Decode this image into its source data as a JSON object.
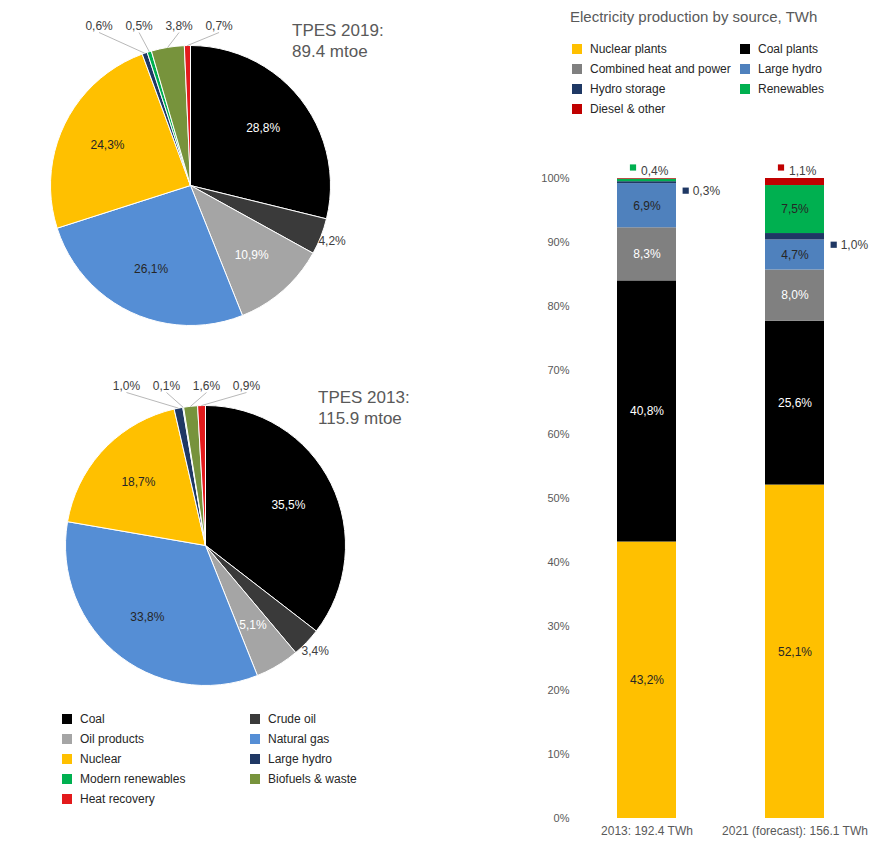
{
  "chart_data": [
    {
      "type": "pie",
      "title": "TPES 2019:",
      "subtitle": "89.4 mtoe",
      "categories": [
        "Coal",
        "Crude oil",
        "Oil products",
        "Natural gas",
        "Nuclear",
        "Large hydro",
        "Modern renewables",
        "Biofuels & waste",
        "Heat recovery"
      ],
      "values": [
        28.8,
        4.2,
        10.9,
        26.1,
        24.3,
        0.6,
        0.5,
        3.8,
        0.7
      ],
      "value_labels": [
        "28,8%",
        "4,2%",
        "10,9%",
        "26,1%",
        "24,3%",
        "0,6%",
        "0,5%",
        "3,8%",
        "0,7%"
      ],
      "colors": [
        "#000000",
        "#3a3a3a",
        "#a5a5a5",
        "#558ed5",
        "#ffc000",
        "#1f3864",
        "#00b050",
        "#77933c",
        "#e31a1c"
      ],
      "data_labels": true
    },
    {
      "type": "pie",
      "title": "TPES 2013:",
      "subtitle": "115.9 mtoe",
      "categories": [
        "Coal",
        "Crude oil",
        "Oil products",
        "Natural gas",
        "Nuclear",
        "Large hydro",
        "Modern renewables",
        "Biofuels & waste",
        "Heat recovery"
      ],
      "values": [
        35.5,
        3.4,
        5.1,
        33.8,
        18.7,
        1.0,
        0.1,
        1.6,
        0.9
      ],
      "value_labels": [
        "35,5%",
        "3,4%",
        "5,1%",
        "33,8%",
        "18,7%",
        "1,0%",
        "0,1%",
        "1,6%",
        "0,9%"
      ],
      "colors": [
        "#000000",
        "#3a3a3a",
        "#a5a5a5",
        "#558ed5",
        "#ffc000",
        "#1f3864",
        "#00b050",
        "#77933c",
        "#e31a1c"
      ],
      "data_labels": true,
      "legend": "bottom"
    },
    {
      "type": "bar",
      "title": "Electricity production by source, TWh",
      "categories": [
        "2013: 192.4 TWh",
        "2021 (forecast): 156.1 TWh"
      ],
      "series": [
        {
          "name": "Nuclear plants",
          "color": "#ffc000",
          "values": [
            43.2,
            52.1
          ],
          "value_labels": [
            "43,2%",
            "52,1%"
          ]
        },
        {
          "name": "Coal plants",
          "color": "#000000",
          "values": [
            40.8,
            25.6
          ],
          "value_labels": [
            "40,8%",
            "25,6%"
          ]
        },
        {
          "name": "Combined heat and power",
          "color": "#808080",
          "values": [
            8.3,
            8.0
          ],
          "value_labels": [
            "8,3%",
            "8,0%"
          ]
        },
        {
          "name": "Large hydro",
          "color": "#4f81bd",
          "values": [
            6.9,
            4.7
          ],
          "value_labels": [
            "6,9%",
            "4,7%"
          ]
        },
        {
          "name": "Hydro storage",
          "color": "#1f3864",
          "values": [
            0.3,
            1.0
          ],
          "value_labels": [
            "0,3%",
            "1,0%"
          ]
        },
        {
          "name": "Renewables",
          "color": "#00b050",
          "values": [
            0.4,
            7.5
          ],
          "value_labels": [
            "0,4%",
            "7,5%"
          ]
        },
        {
          "name": "Diesel & other",
          "color": "#c00000",
          "values": [
            0.1,
            1.1
          ],
          "value_labels": [
            null,
            "1,1%"
          ]
        }
      ],
      "ylim": [
        0,
        100
      ],
      "yticks": [
        {
          "value": 0,
          "label": "0%"
        },
        {
          "value": 10,
          "label": "10%"
        },
        {
          "value": 20,
          "label": "20%"
        },
        {
          "value": 30,
          "label": "30%"
        },
        {
          "value": 40,
          "label": "40%"
        },
        {
          "value": 50,
          "label": "50%"
        },
        {
          "value": 60,
          "label": "60%"
        },
        {
          "value": 70,
          "label": "70%"
        },
        {
          "value": 80,
          "label": "80%"
        },
        {
          "value": 90,
          "label": "90%"
        },
        {
          "value": 100,
          "label": "100%"
        }
      ],
      "stacked": true,
      "data_labels": true,
      "legend": "top",
      "grid": false
    }
  ]
}
